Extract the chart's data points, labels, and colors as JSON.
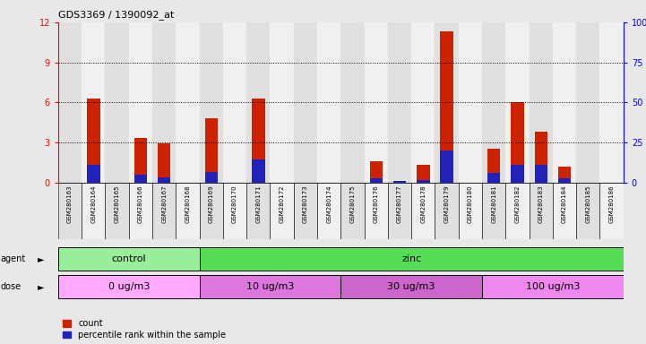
{
  "title": "GDS3369 / 1390092_at",
  "samples": [
    "GSM280163",
    "GSM280164",
    "GSM280165",
    "GSM280166",
    "GSM280167",
    "GSM280168",
    "GSM280169",
    "GSM280170",
    "GSM280171",
    "GSM280172",
    "GSM280173",
    "GSM280174",
    "GSM280175",
    "GSM280176",
    "GSM280177",
    "GSM280178",
    "GSM280179",
    "GSM280180",
    "GSM280181",
    "GSM280182",
    "GSM280183",
    "GSM280184",
    "GSM280185",
    "GSM280186"
  ],
  "count_values": [
    0.0,
    6.3,
    0.0,
    3.3,
    2.9,
    0.0,
    4.8,
    0.0,
    6.3,
    0.0,
    0.0,
    0.0,
    0.0,
    1.6,
    0.0,
    1.3,
    11.3,
    0.0,
    2.5,
    6.0,
    3.8,
    1.2,
    0.0,
    0.0
  ],
  "pct_values": [
    0.0,
    1.3,
    0.0,
    0.6,
    0.4,
    0.0,
    0.8,
    0.0,
    1.7,
    0.0,
    0.0,
    0.0,
    0.0,
    0.3,
    0.1,
    0.2,
    2.4,
    0.0,
    0.7,
    1.3,
    1.3,
    0.3,
    0.0,
    0.0
  ],
  "count_color": "#cc2200",
  "pct_color": "#2222bb",
  "ylim_left": [
    0,
    12
  ],
  "ylim_right": [
    0,
    100
  ],
  "yticks_left": [
    0,
    3,
    6,
    9,
    12
  ],
  "yticks_right": [
    0,
    25,
    50,
    75,
    100
  ],
  "agent_groups": [
    {
      "label": "control",
      "start": 0,
      "end": 6,
      "color": "#99ee99"
    },
    {
      "label": "zinc",
      "start": 6,
      "end": 24,
      "color": "#55dd55"
    }
  ],
  "dose_groups": [
    {
      "label": "0 ug/m3",
      "start": 0,
      "end": 6,
      "color": "#ffaaff"
    },
    {
      "label": "10 ug/m3",
      "start": 6,
      "end": 12,
      "color": "#dd77dd"
    },
    {
      "label": "30 ug/m3",
      "start": 12,
      "end": 18,
      "color": "#cc66cc"
    },
    {
      "label": "100 ug/m3",
      "start": 18,
      "end": 24,
      "color": "#ee88ee"
    }
  ],
  "bg_color": "#e8e8e8",
  "plot_bg": "#ffffff",
  "col_bg_even": "#e0e0e0",
  "col_bg_odd": "#f0f0f0"
}
